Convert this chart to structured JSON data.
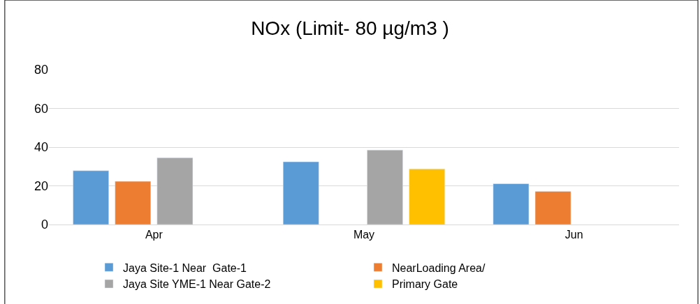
{
  "chart_data": {
    "type": "bar",
    "title": "NOx (Limit- 80 µg/m3 )",
    "categories": [
      "Apr",
      "May",
      "Jun"
    ],
    "series": [
      {
        "name": "Jaya Site-1 Near  Gate-1",
        "color": "#5b9bd5",
        "values": [
          27.8,
          32.4,
          21.1
        ]
      },
      {
        "name": "NearLoading Area/",
        "color": "#ed7d31",
        "values": [
          22.3,
          null,
          17.1
        ]
      },
      {
        "name": "Jaya Site YME-1 Near Gate-2",
        "color": "#a5a5a5",
        "values": [
          34.5,
          38.5,
          null
        ]
      },
      {
        "name": "Primary Gate",
        "color": "#ffc000",
        "values": [
          null,
          28.7,
          null
        ]
      }
    ],
    "ylim": [
      0,
      80
    ],
    "yticks": [
      0,
      20,
      40,
      60,
      80
    ],
    "grid": "y",
    "legend": "bottom"
  }
}
